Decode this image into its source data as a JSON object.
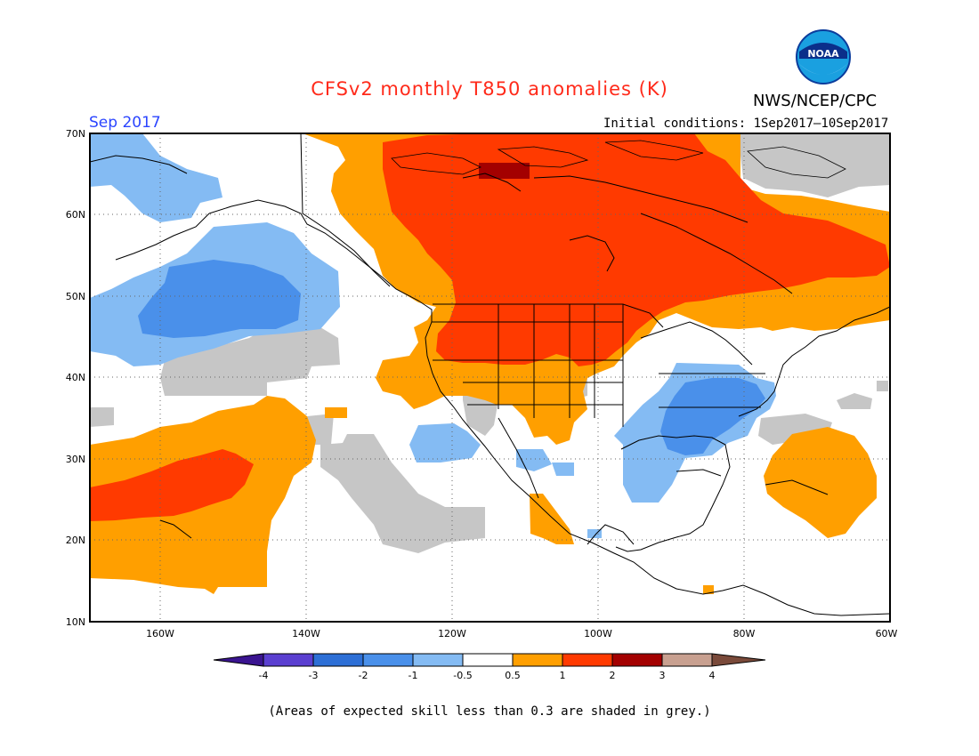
{
  "header": {
    "title": "CFSv2 monthly T850 anomalies (K)",
    "agency": "NWS/NCEP/CPC",
    "logo_text": "NOAA",
    "month": "Sep 2017",
    "initial_conditions": "Initial conditions: 1Sep2017–10Sep2017"
  },
  "map": {
    "lat_labels": [
      "70N",
      "60N",
      "50N",
      "40N",
      "30N",
      "20N",
      "10N"
    ],
    "lon_labels": [
      "160W",
      "140W",
      "120W",
      "100W",
      "80W",
      "60W"
    ]
  },
  "colorbar": {
    "tick_labels": [
      "-4",
      "-3",
      "-2",
      "-1",
      "-0.5",
      "0.5",
      "1",
      "2",
      "3",
      "4"
    ],
    "colors": {
      "lt_m4": "#3a1490",
      "m4_m3": "#5a3fd0",
      "m3_m2": "#2d6fd6",
      "m2_m1": "#4a90ea",
      "m1_m05": "#84bbf3",
      "neutral": "#ffffff",
      "p05_p1": "#ff9f00",
      "p1_p2": "#ff3a00",
      "p2_p3": "#a30000",
      "p3_p4": "#c8a090",
      "gt_p4": "#7a4a3a",
      "low_skill_grey": "#c6c6c6"
    }
  },
  "footnote": "(Areas of expected skill less than 0.3 are shaded in grey.)"
}
